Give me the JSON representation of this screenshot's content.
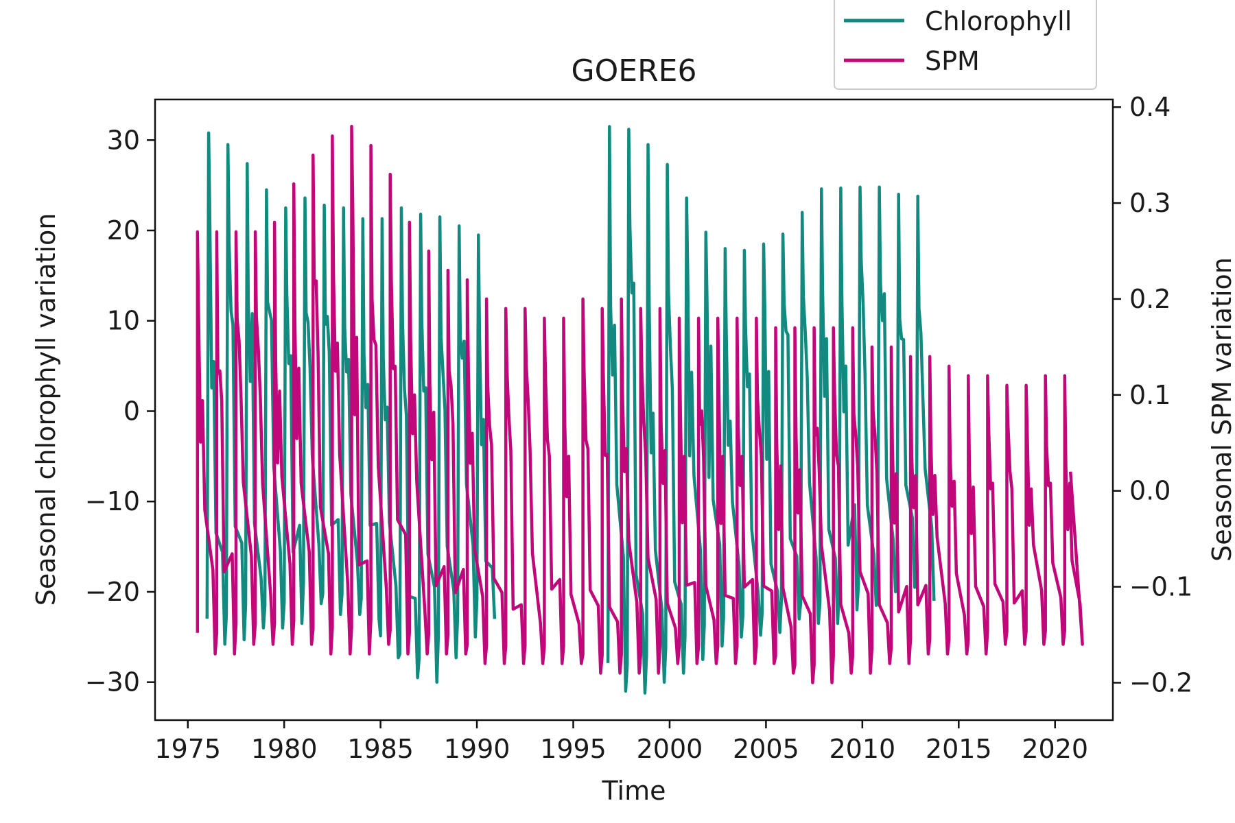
{
  "chart_data": {
    "type": "line",
    "title": "GOERE6",
    "xlabel": "Time",
    "ylabel": "Seasonal chlorophyll variation",
    "y2label": "Seasonal SPM variation",
    "xlim": [
      1973.3,
      2023.0
    ],
    "ylim": [
      -34.2,
      34.5
    ],
    "y2lim": [
      -0.239,
      0.408
    ],
    "x_ticks": [
      1975,
      1980,
      1985,
      1990,
      1995,
      2000,
      2005,
      2010,
      2015,
      2020
    ],
    "y_ticks": [
      -30,
      -20,
      -10,
      0,
      10,
      20,
      30
    ],
    "y2_ticks": [
      -0.2,
      -0.1,
      0.0,
      0.1,
      0.2,
      0.3,
      0.4
    ],
    "y2_tick_labels": [
      "−0.2",
      "−0.1",
      "0.0",
      "0.1",
      "0.2",
      "0.3",
      "0.4"
    ],
    "grid": false,
    "legend_position": "top-right (above plot)",
    "series": [
      {
        "name": "Chlorophyll",
        "axis": "left",
        "color": "#138a80",
        "segments": [
          {
            "start": 1976.0,
            "amplitudes": [
              30.8,
              29.5,
              27.4,
              24.5,
              22.5,
              23.6,
              22.8,
              22.5,
              21.3,
              21.3,
              22.5,
              21.8,
              21.5,
              20.5,
              19.5
            ],
            "troughs": [
              -25.8,
              -25.3,
              -24.0,
              -24.0,
              -23.5,
              -21.3,
              -22.5,
              -22.5,
              -23.0,
              -27.3,
              -29.5,
              -30.0,
              -27.3,
              -25.0,
              -23.0
            ]
          },
          {
            "start": 1996.8,
            "amplitudes": [
              31.5,
              31.2,
              29.5,
              27.3,
              23.6,
              19.8,
              18.0,
              17.8,
              18.5,
              19.6,
              22.0,
              24.6,
              24.7,
              24.8,
              24.8,
              24.0,
              23.8
            ],
            "troughs": [
              -31.0,
              -31.2,
              -30.0,
              -29.0,
              -27.5,
              -26.0,
              -25.0,
              -24.8,
              -24.5,
              -23.0,
              -23.5,
              -23.5,
              -22.0,
              -21.5,
              -20.0,
              -19.5,
              -21.0
            ]
          }
        ]
      },
      {
        "name": "SPM",
        "axis": "right",
        "color": "#c0087a",
        "start": 1975.5,
        "amplitudes": [
          0.27,
          0.27,
          0.27,
          0.27,
          0.28,
          0.32,
          0.35,
          0.37,
          0.38,
          0.36,
          0.33,
          0.28,
          0.25,
          0.23,
          0.22,
          0.2,
          0.19,
          0.19,
          0.18,
          0.18,
          0.2,
          0.19,
          0.2,
          0.19,
          0.19,
          0.18,
          0.18,
          0.18,
          0.18,
          0.18,
          0.17,
          0.17,
          0.17,
          0.17,
          0.17,
          0.15,
          0.15,
          0.14,
          0.14,
          0.13,
          0.12,
          0.12,
          0.11,
          0.11,
          0.12,
          0.12
        ],
        "troughs": [
          -0.17,
          -0.17,
          -0.16,
          -0.16,
          -0.16,
          -0.16,
          -0.17,
          -0.17,
          -0.17,
          -0.16,
          -0.17,
          -0.17,
          -0.17,
          -0.17,
          -0.18,
          -0.18,
          -0.18,
          -0.18,
          -0.18,
          -0.18,
          -0.19,
          -0.19,
          -0.19,
          -0.19,
          -0.18,
          -0.18,
          -0.18,
          -0.18,
          -0.18,
          -0.18,
          -0.19,
          -0.2,
          -0.2,
          -0.19,
          -0.19,
          -0.18,
          -0.18,
          -0.17,
          -0.17,
          -0.17,
          -0.17,
          -0.16,
          -0.16,
          -0.16,
          -0.16,
          -0.16
        ],
        "end": 2020.8,
        "end_value": 0.02
      }
    ]
  }
}
